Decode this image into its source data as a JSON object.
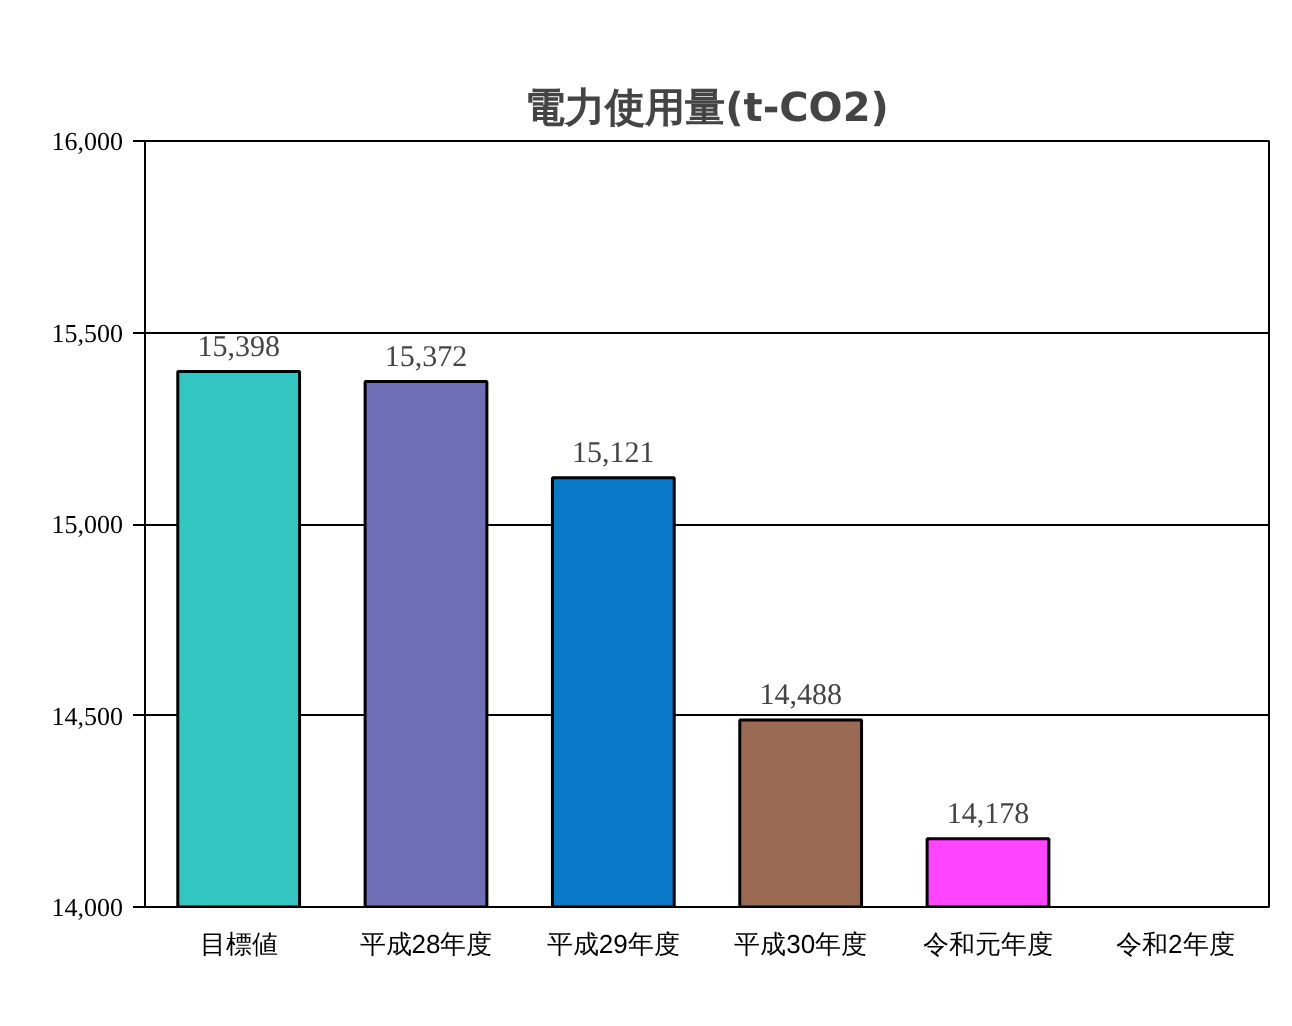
{
  "chart_data": {
    "type": "bar",
    "title": "電力使用量(t-CO2)",
    "categories": [
      "目標値",
      "平成28年度",
      "平成29年度",
      "平成30年度",
      "令和元年度",
      "令和2年度"
    ],
    "values": [
      15398,
      15372,
      15121,
      14488,
      14178,
      null
    ],
    "colors": [
      "#33c6c0",
      "#6f6fb8",
      "#0a78c8",
      "#9a6a52",
      "#ff44ff",
      "#999999"
    ],
    "ylim": [
      14000,
      16000
    ],
    "yticks": [
      {
        "value": 14000,
        "label": "14,000"
      },
      {
        "value": 14500,
        "label": "14,500"
      },
      {
        "value": 15000,
        "label": "15,000"
      },
      {
        "value": 15500,
        "label": "15,500"
      },
      {
        "value": 16000,
        "label": "16,000"
      }
    ],
    "value_labels": [
      "15,398",
      "15,372",
      "15,121",
      "14,488",
      "14,178",
      null
    ],
    "grid": "y"
  }
}
